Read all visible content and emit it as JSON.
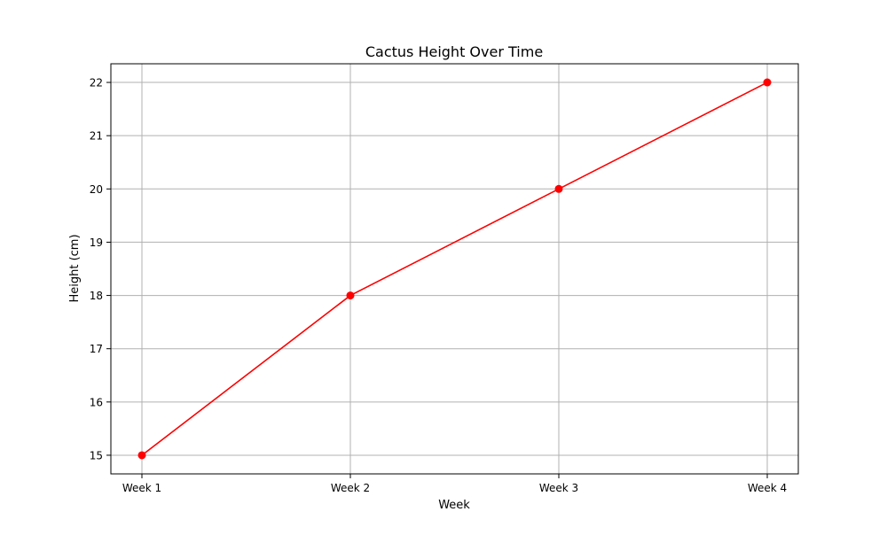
{
  "chart_data": {
    "type": "line",
    "title": "Cactus Height Over Time",
    "xlabel": "Week",
    "ylabel": "Height (cm)",
    "categories": [
      "Week 1",
      "Week 2",
      "Week 3",
      "Week 4"
    ],
    "series": [
      {
        "values": [
          15,
          18,
          20,
          22
        ],
        "color": "#ff0000",
        "marker": "circle"
      }
    ],
    "ylim": [
      14.65,
      22.35
    ],
    "yticks": [
      15,
      16,
      17,
      18,
      19,
      20,
      21,
      22
    ],
    "grid": true
  }
}
